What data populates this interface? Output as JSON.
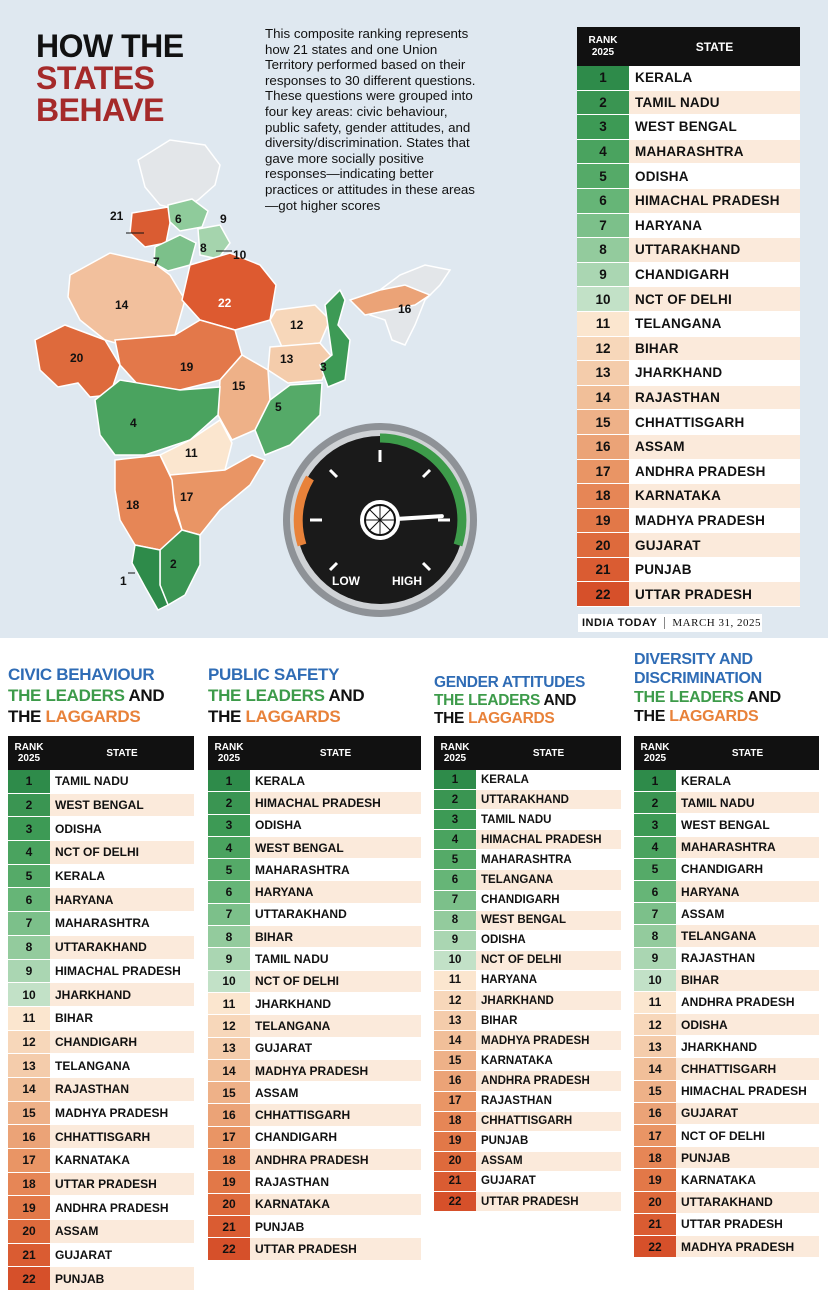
{
  "headline": {
    "line1": "HOW THE",
    "line2": "STATES",
    "line3": "BEHAVE"
  },
  "intro": "This composite ranking represents how 21 states and one Union Territory performed based on their responses to 30 different questions. These questions were grouped into four key areas: civic behaviour, public safety, gender attitudes, and diversity/discrimination. States that gave more socially positive responses—indicating better practices or attitudes in these areas—got higher scores",
  "table_header": {
    "rank": "RANK",
    "year": "2025",
    "state": "STATE"
  },
  "colors": {
    "rank_shades": [
      "#2e8b4a",
      "#3a9552",
      "#3d9a55",
      "#4aa35f",
      "#55aa68",
      "#66b577",
      "#7cc08a",
      "#93cb9d",
      "#aad6b2",
      "#c2e1c7",
      "#fbe6cf",
      "#f7d7ba",
      "#f4ccab",
      "#f1bf99",
      "#eeb188",
      "#eba377",
      "#e99565",
      "#e68656",
      "#e27848",
      "#de6a3c",
      "#da5c32",
      "#d6502a"
    ],
    "row_tints": [
      "#ffffff",
      "#fbeadb"
    ],
    "green_text": "#3d9b4a",
    "orange_text": "#e8823a",
    "blue_text": "#2f6cb5"
  },
  "overall": [
    "KERALA",
    "TAMIL NADU",
    "WEST BENGAL",
    "MAHARASHTRA",
    "ODISHA",
    "HIMACHAL PRADESH",
    "HARYANA",
    "UTTARAKHAND",
    "CHANDIGARH",
    "NCT OF DELHI",
    "TELANGANA",
    "BIHAR",
    "JHARKHAND",
    "RAJASTHAN",
    "CHHATTISGARH",
    "ASSAM",
    "ANDHRA PRADESH",
    "KARNATAKA",
    "MADHYA PRADESH",
    "GUJARAT",
    "PUNJAB",
    "UTTAR PRADESH"
  ],
  "map_labels": [
    "1",
    "2",
    "3",
    "4",
    "5",
    "6",
    "7",
    "8",
    "9",
    "10",
    "11",
    "12",
    "13",
    "14",
    "15",
    "16",
    "17",
    "18",
    "19",
    "20",
    "21",
    "22"
  ],
  "gauge": {
    "low": "LOW",
    "high": "HIGH",
    "reading": 0.82
  },
  "credit": {
    "publisher": "INDIA TODAY",
    "date": "MARCH 31, 2025"
  },
  "sections": [
    {
      "lines": [
        [
          "CIVIC BEHAVIOUR"
        ]
      ],
      "leaders_text": "THE LEADERS",
      "and_text": " AND",
      "the_text": "THE ",
      "laggards_text": "LAGGARDS",
      "states": [
        "TAMIL NADU",
        "WEST BENGAL",
        "ODISHA",
        "NCT OF DELHI",
        "KERALA",
        "HARYANA",
        "MAHARASHTRA",
        "UTTARAKHAND",
        "HIMACHAL PRADESH",
        "JHARKHAND",
        "BIHAR",
        "CHANDIGARH",
        "TELANGANA",
        "RAJASTHAN",
        "MADHYA PRADESH",
        "CHHATTISGARH",
        "KARNATAKA",
        "UTTAR PRADESH",
        "ANDHRA PRADESH",
        "ASSAM",
        "GUJARAT",
        "PUNJAB"
      ]
    },
    {
      "lines": [
        [
          "PUBLIC SAFETY"
        ]
      ],
      "leaders_text": "THE LEADERS",
      "and_text": " AND",
      "the_text": "THE ",
      "laggards_text": "LAGGARDS",
      "states": [
        "KERALA",
        "HIMACHAL PRADESH",
        "ODISHA",
        "WEST BENGAL",
        "MAHARASHTRA",
        "HARYANA",
        "UTTARAKHAND",
        "BIHAR",
        "TAMIL NADU",
        "NCT OF DELHI",
        "JHARKHAND",
        "TELANGANA",
        "GUJARAT",
        "MADHYA PRADESH",
        "ASSAM",
        "CHHATTISGARH",
        "CHANDIGARH",
        "ANDHRA PRADESH",
        "RAJASTHAN",
        "KARNATAKA",
        "PUNJAB",
        "UTTAR PRADESH"
      ]
    },
    {
      "lines": [
        [
          "GENDER ATTITUDES"
        ]
      ],
      "leaders_text": "THE LEADERS",
      "and_text": " AND",
      "the_text": "THE ",
      "laggards_text": "LAGGARDS",
      "states": [
        "KERALA",
        "UTTARAKHAND",
        "TAMIL NADU",
        "HIMACHAL PRADESH",
        "MAHARASHTRA",
        "TELANGANA",
        "CHANDIGARH",
        "WEST BENGAL",
        "ODISHA",
        "NCT OF DELHI",
        "HARYANA",
        "JHARKHAND",
        "BIHAR",
        "MADHYA PRADESH",
        "KARNATAKA",
        "ANDHRA PRADESH",
        "RAJASTHAN",
        "CHHATTISGARH",
        "PUNJAB",
        "ASSAM",
        "GUJARAT",
        "UTTAR PRADESH"
      ]
    },
    {
      "lines": [
        [
          "DIVERSITY AND"
        ],
        [
          "DISCRIMINATION"
        ]
      ],
      "leaders_text": "THE LEADERS",
      "and_text": " AND",
      "the_text": "THE ",
      "laggards_text": "LAGGARDS",
      "states": [
        "KERALA",
        "TAMIL NADU",
        "WEST BENGAL",
        "MAHARASHTRA",
        "CHANDIGARH",
        "HARYANA",
        "ASSAM",
        "TELANGANA",
        "RAJASTHAN",
        "BIHAR",
        "ANDHRA PRADESH",
        "ODISHA",
        "JHARKHAND",
        "CHHATTISGARH",
        "HIMACHAL PRADESH",
        "GUJARAT",
        "NCT OF DELHI",
        "PUNJAB",
        "KARNATAKA",
        "UTTARAKHAND",
        "UTTAR PRADESH",
        "MADHYA PRADESH"
      ]
    }
  ]
}
